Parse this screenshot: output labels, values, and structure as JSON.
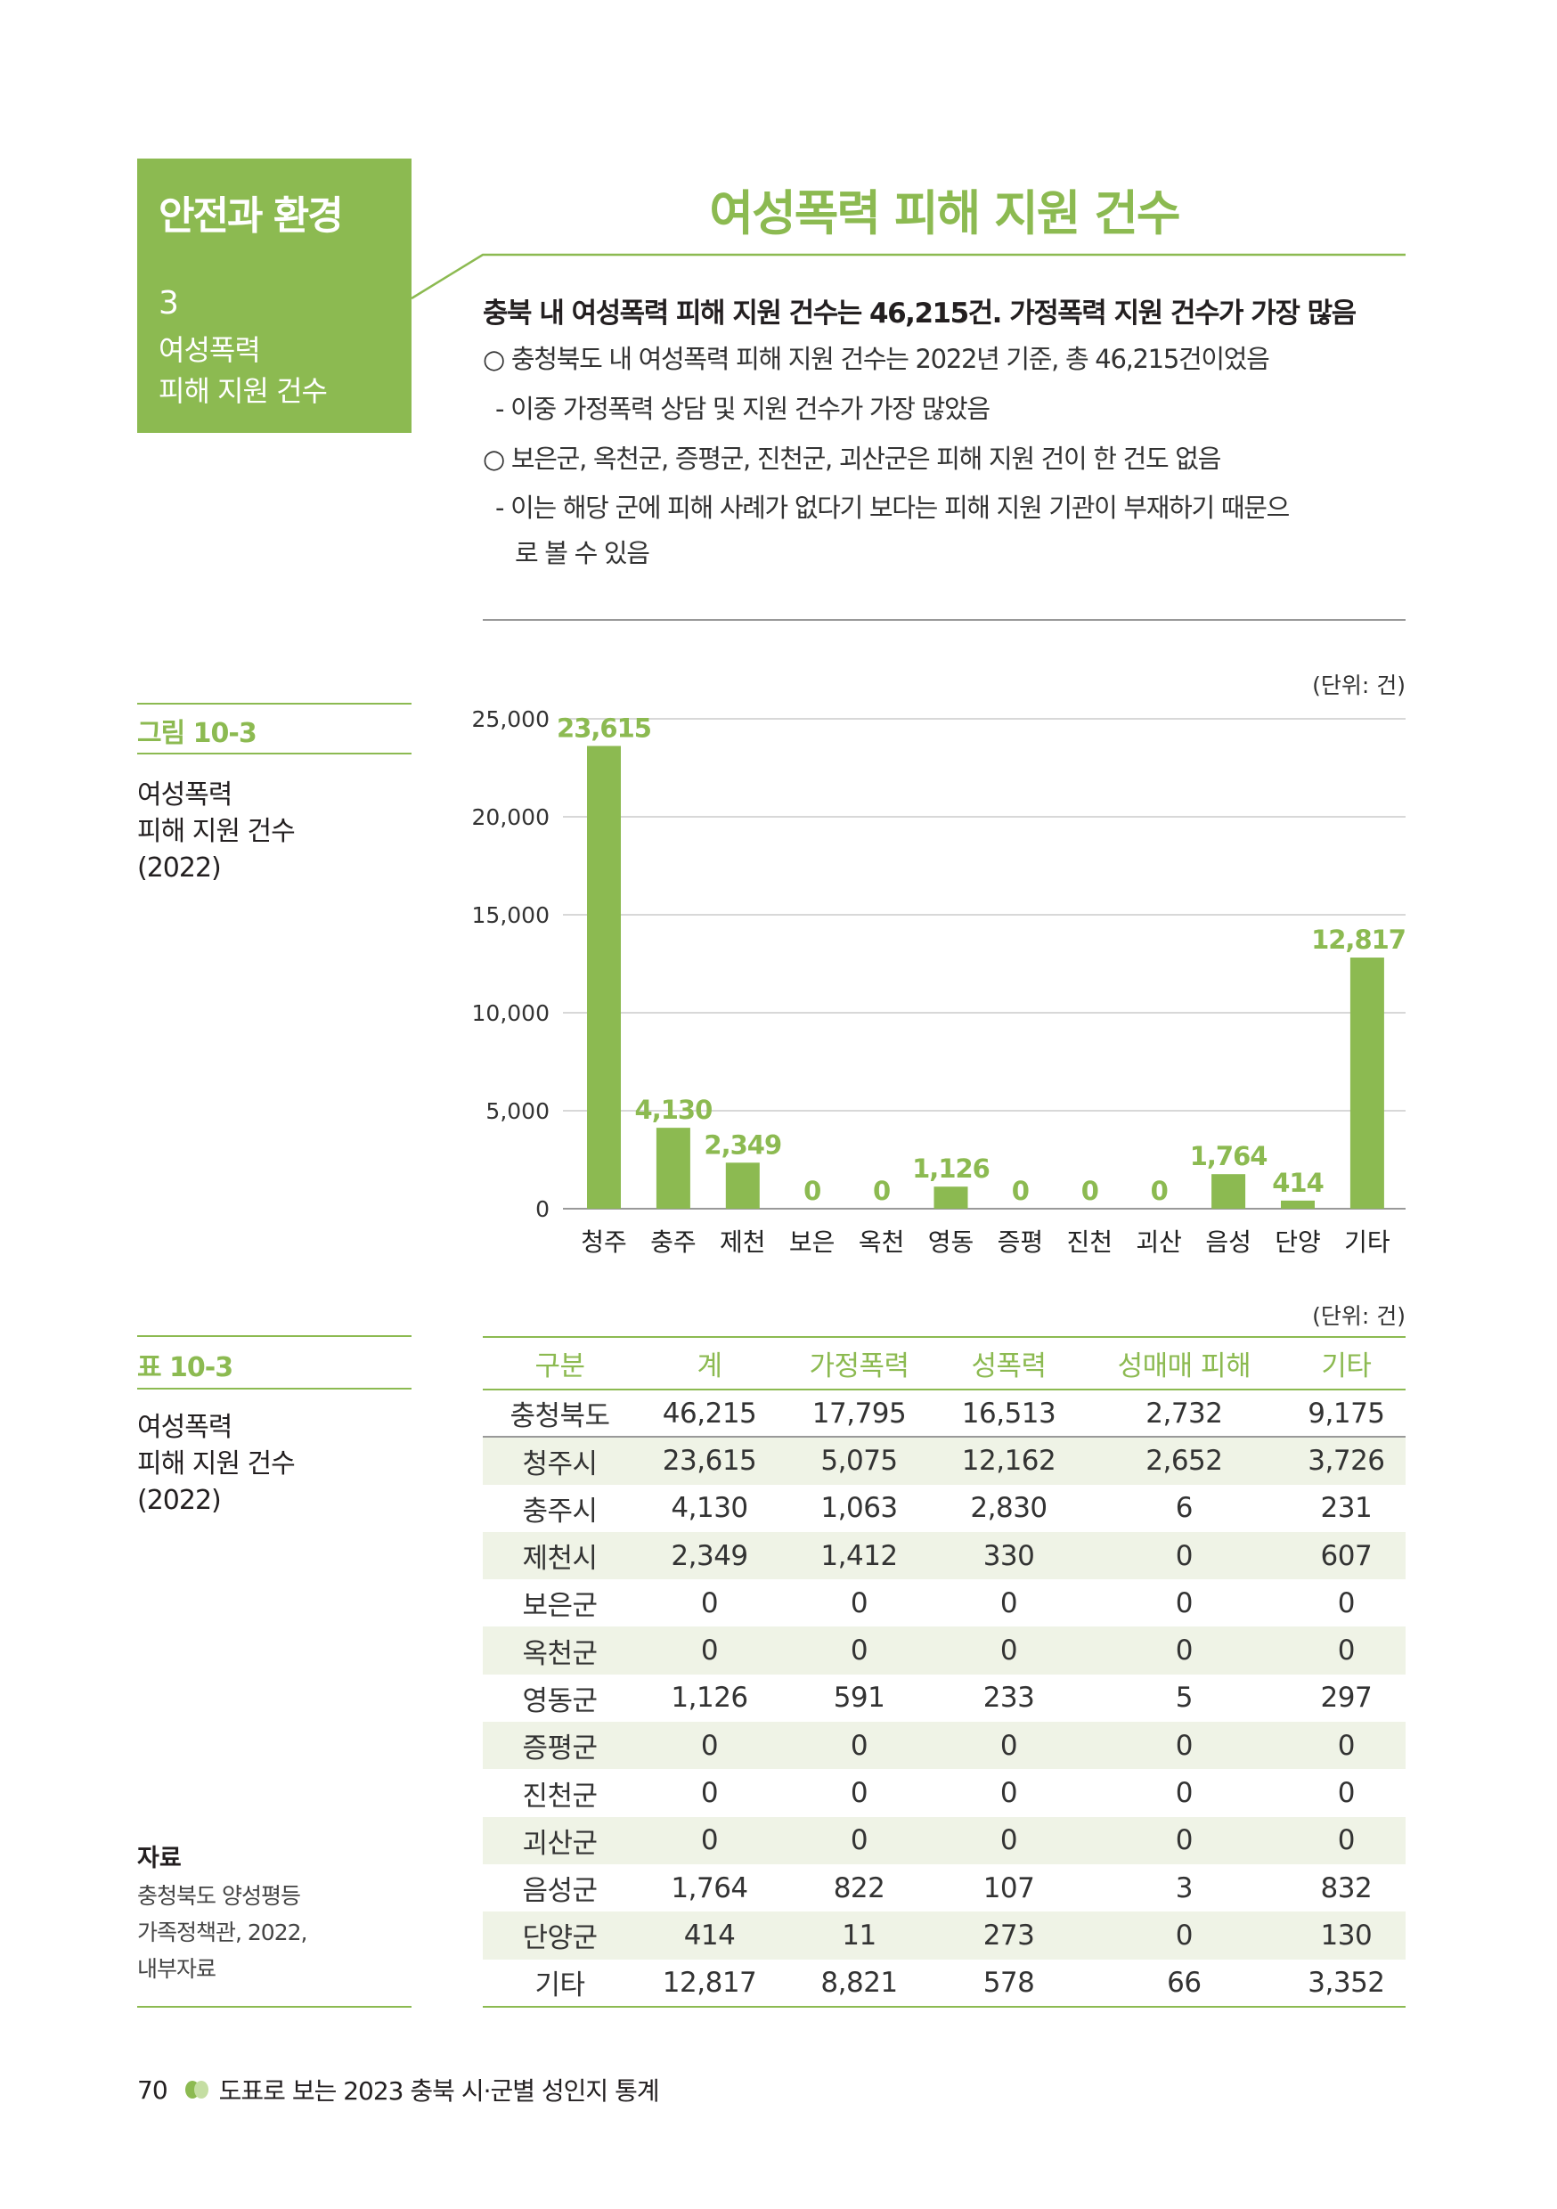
{
  "section": {
    "category": "안전과 환경",
    "number": "3",
    "subtitle_lines": [
      "여성폭력",
      "피해 지원 건수"
    ]
  },
  "title": "여성폭력 피해 지원 건수",
  "headline": "충북 내 여성폭력 피해 지원 건수는 46,215건. 가정폭력 지원 건수가 가장 많음",
  "bullets": [
    "○ 충청북도 내 여성폭력 피해 지원 건수는 2022년 기준, 총 46,215건이었음",
    "- 이중 가정폭력 상담 및 지원 건수가 가장 많았음",
    "○ 보은군, 옥천군, 증평군, 진천군, 괴산군은 피해 지원 건이 한 건도 없음",
    "- 이는 해당 군에 피해 사례가 없다기 보다는 피해 지원 기관이 부재하기 때문으",
    "로 볼 수 있음"
  ],
  "figure": {
    "caption": "그림 10-3",
    "desc_lines": [
      "여성폭력",
      "피해 지원 건수",
      "(2022)"
    ],
    "unit": "(단위: 건)"
  },
  "chart_data": {
    "type": "bar",
    "categories": [
      "청주",
      "충주",
      "제천",
      "보은",
      "옥천",
      "영동",
      "증평",
      "진천",
      "괴산",
      "음성",
      "단양",
      "기타"
    ],
    "values": [
      23615,
      4130,
      2349,
      0,
      0,
      1126,
      0,
      0,
      0,
      1764,
      414,
      12817
    ],
    "data_labels": [
      "23,615",
      "4,130",
      "2,349",
      "0",
      "0",
      "1,126",
      "0",
      "0",
      "0",
      "1,764",
      "414",
      "12,817"
    ],
    "ylim": [
      0,
      25000
    ],
    "yticks": [
      "0",
      "5,000",
      "10,000",
      "15,000",
      "20,000",
      "25,000"
    ],
    "grid": true,
    "bar_color": "#8cba51"
  },
  "table_section": {
    "caption": "표 10-3",
    "desc_lines": [
      "여성폭력",
      "피해 지원 건수",
      "(2022)"
    ],
    "unit": "(단위: 건)"
  },
  "table": {
    "headers": [
      "구분",
      "계",
      "가정폭력",
      "성폭력",
      "성매매 피해",
      "기타"
    ],
    "rows": [
      [
        "충청북도",
        "46,215",
        "17,795",
        "16,513",
        "2,732",
        "9,175"
      ],
      [
        "청주시",
        "23,615",
        "5,075",
        "12,162",
        "2,652",
        "3,726"
      ],
      [
        "충주시",
        "4,130",
        "1,063",
        "2,830",
        "6",
        "231"
      ],
      [
        "제천시",
        "2,349",
        "1,412",
        "330",
        "0",
        "607"
      ],
      [
        "보은군",
        "0",
        "0",
        "0",
        "0",
        "0"
      ],
      [
        "옥천군",
        "0",
        "0",
        "0",
        "0",
        "0"
      ],
      [
        "영동군",
        "1,126",
        "591",
        "233",
        "5",
        "297"
      ],
      [
        "증평군",
        "0",
        "0",
        "0",
        "0",
        "0"
      ],
      [
        "진천군",
        "0",
        "0",
        "0",
        "0",
        "0"
      ],
      [
        "괴산군",
        "0",
        "0",
        "0",
        "0",
        "0"
      ],
      [
        "음성군",
        "1,764",
        "822",
        "107",
        "3",
        "832"
      ],
      [
        "단양군",
        "414",
        "11",
        "273",
        "0",
        "130"
      ],
      [
        "기타",
        "12,817",
        "8,821",
        "578",
        "66",
        "3,352"
      ]
    ]
  },
  "source": {
    "label": "자료",
    "lines": [
      "충청북도 양성평등",
      "가족정책관, 2022,",
      "내부자료"
    ]
  },
  "footer": {
    "page": "70",
    "book": "도표로 보는 2023 충북 시·군별 성인지 통계"
  },
  "colors": {
    "accent": "#8cba51",
    "accent_light": "#c5dea3",
    "stripe": "#eff3e6"
  }
}
